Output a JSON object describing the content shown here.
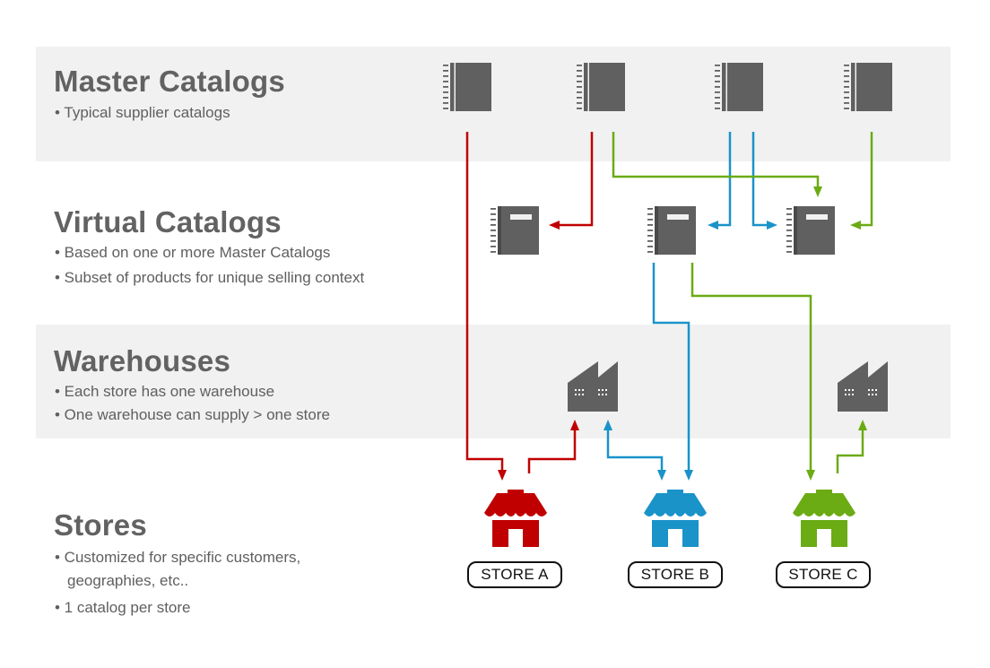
{
  "sections": {
    "master": {
      "title": "Master Catalogs",
      "bullets": [
        "• Typical supplier catalogs"
      ]
    },
    "virtual": {
      "title": "Virtual Catalogs",
      "bullets": [
        "• Based on one or more Master Catalogs",
        "• Subset of products for unique selling context"
      ]
    },
    "warehouses": {
      "title": "Warehouses",
      "bullets": [
        "• Each store has one warehouse",
        "• One warehouse can supply > one store"
      ]
    },
    "stores": {
      "title": "Stores",
      "bullets": [
        "• Customized for specific customers,",
        "geographies, etc..",
        "• 1 catalog per store"
      ]
    }
  },
  "stores": [
    {
      "label": "STORE A",
      "color": "#c00000"
    },
    {
      "label": "STORE B",
      "color": "#1a93c9"
    },
    {
      "label": "STORE C",
      "color": "#6bab14"
    }
  ],
  "icons": {
    "master_catalog": "master-catalog-icon",
    "virtual_catalog": "virtual-catalog-icon",
    "warehouse": "warehouse-icon",
    "store": "store-icon"
  },
  "colors": {
    "red": "#c00000",
    "blue": "#1a93c9",
    "green": "#6bab14",
    "icon_gray": "#606060",
    "band": "#f1f1f1",
    "text": "#626262"
  }
}
